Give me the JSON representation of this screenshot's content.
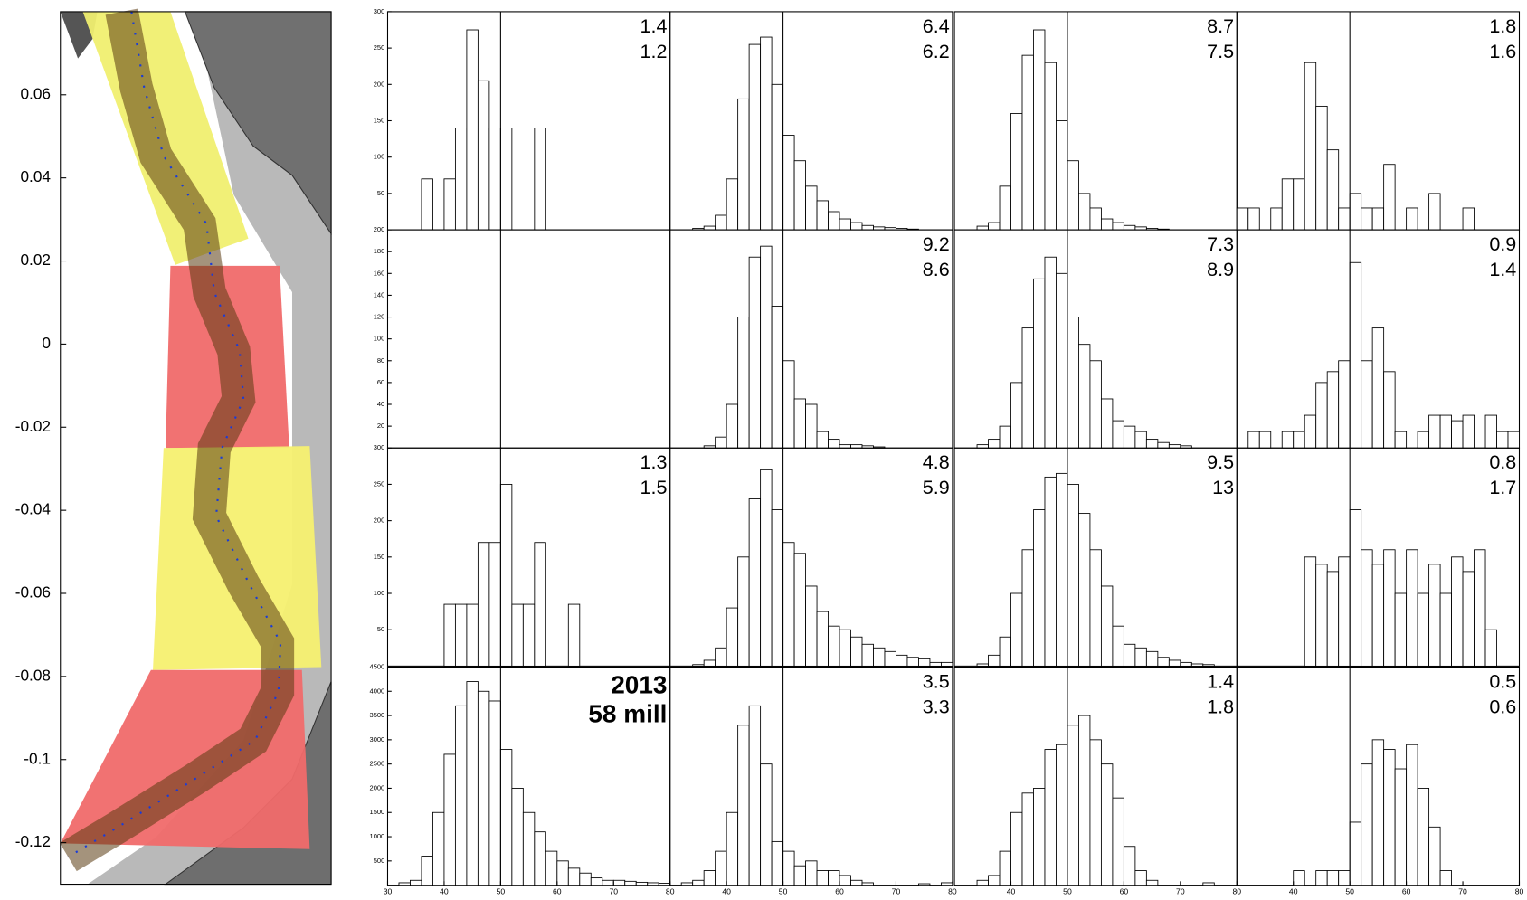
{
  "chart_data": [
    {
      "type": "map",
      "ylim": [
        -0.13,
        0.08
      ],
      "yticks": [
        0.06,
        0.04,
        0.02,
        0,
        -0.02,
        -0.04,
        -0.06,
        -0.08,
        -0.1,
        -0.12
      ]
    },
    {
      "type": "histogram-grid",
      "bins": [
        30,
        32,
        34,
        36,
        38,
        40,
        42,
        44,
        46,
        48,
        50,
        52,
        54,
        56,
        58,
        60,
        62,
        64,
        66,
        68,
        70,
        72,
        74,
        76,
        78,
        80
      ],
      "xlim": [
        30,
        80
      ],
      "xticks": [
        30,
        40,
        50,
        60,
        70,
        80
      ],
      "reference_x": 50,
      "panels": [
        {
          "ylim": [
            0,
            300
          ],
          "yticks": [
            50,
            100,
            150,
            200,
            250,
            300
          ],
          "annotations": [
            "1.4",
            "1.2"
          ],
          "values": [
            0,
            0,
            0,
            70,
            0,
            70,
            140,
            275,
            205,
            140,
            140,
            0,
            0,
            140,
            0,
            0,
            0,
            0,
            0,
            0,
            0,
            0,
            0,
            0,
            0
          ]
        },
        {
          "ylim": [
            0,
            300
          ],
          "annotations": [
            "6.4",
            "6.2"
          ],
          "values": [
            0,
            0,
            2,
            5,
            20,
            70,
            180,
            255,
            265,
            200,
            130,
            95,
            60,
            40,
            25,
            15,
            10,
            6,
            4,
            3,
            2,
            1,
            0,
            0,
            0
          ]
        },
        {
          "ylim": [
            0,
            300
          ],
          "annotations": [
            "8.7",
            "7.5"
          ],
          "values": [
            0,
            0,
            5,
            10,
            60,
            160,
            240,
            275,
            230,
            150,
            95,
            50,
            30,
            15,
            10,
            6,
            4,
            2,
            1,
            0,
            0,
            0,
            0,
            0,
            0
          ]
        },
        {
          "ylim": [
            0,
            300
          ],
          "annotations": [
            "1.8",
            "1.6"
          ],
          "values": [
            30,
            30,
            0,
            30,
            70,
            70,
            230,
            170,
            110,
            30,
            50,
            30,
            30,
            90,
            0,
            30,
            0,
            50,
            0,
            0,
            30,
            0,
            0,
            0,
            0
          ]
        },
        {
          "ylim": [
            0,
            200
          ],
          "yticks": [
            20,
            40,
            60,
            80,
            100,
            120,
            140,
            160,
            180,
            200
          ],
          "annotations": [],
          "values": [
            0,
            0,
            0,
            0,
            0,
            0,
            0,
            0,
            0,
            0,
            0,
            0,
            0,
            0,
            0,
            0,
            0,
            0,
            0,
            0,
            0,
            0,
            0,
            0,
            0
          ]
        },
        {
          "ylim": [
            0,
            200
          ],
          "annotations": [
            "9.2",
            "8.6"
          ],
          "values": [
            0,
            0,
            0,
            2,
            10,
            40,
            120,
            175,
            185,
            130,
            80,
            45,
            40,
            15,
            8,
            3,
            3,
            2,
            1,
            0,
            0,
            0,
            0,
            0,
            0
          ]
        },
        {
          "ylim": [
            0,
            200
          ],
          "annotations": [
            "7.3",
            "8.9"
          ],
          "values": [
            0,
            0,
            3,
            8,
            20,
            60,
            110,
            155,
            175,
            160,
            120,
            95,
            80,
            45,
            25,
            20,
            15,
            8,
            5,
            3,
            2,
            0,
            0,
            0,
            0
          ]
        },
        {
          "ylim": [
            0,
            200
          ],
          "annotations": [
            "0.9",
            "1.4"
          ],
          "values": [
            0,
            15,
            15,
            0,
            15,
            15,
            30,
            60,
            70,
            80,
            170,
            80,
            110,
            70,
            15,
            0,
            15,
            30,
            30,
            25,
            30,
            0,
            30,
            15,
            15
          ]
        },
        {
          "ylim": [
            0,
            300
          ],
          "yticks": [
            50,
            100,
            150,
            200,
            250,
            300
          ],
          "annotations": [
            "1.3",
            "1.5"
          ],
          "values": [
            0,
            0,
            0,
            0,
            0,
            85,
            85,
            85,
            170,
            170,
            250,
            85,
            85,
            170,
            0,
            0,
            85,
            0,
            0,
            0,
            0,
            0,
            0,
            0,
            0
          ]
        },
        {
          "ylim": [
            0,
            300
          ],
          "annotations": [
            "4.8",
            "5.9"
          ],
          "values": [
            0,
            0,
            2,
            8,
            25,
            80,
            150,
            230,
            270,
            215,
            170,
            155,
            110,
            75,
            55,
            50,
            40,
            30,
            25,
            20,
            15,
            12,
            10,
            5,
            5
          ]
        },
        {
          "ylim": [
            0,
            300
          ],
          "annotations": [
            "9.5",
            "13"
          ],
          "values": [
            0,
            0,
            3,
            15,
            40,
            100,
            160,
            215,
            260,
            265,
            250,
            210,
            160,
            110,
            55,
            30,
            25,
            20,
            12,
            8,
            5,
            3,
            2,
            0,
            0
          ]
        },
        {
          "ylim": [
            0,
            300
          ],
          "annotations": [
            "0.8",
            "1.7"
          ],
          "values": [
            0,
            0,
            0,
            0,
            0,
            0,
            150,
            140,
            130,
            150,
            215,
            160,
            140,
            160,
            100,
            160,
            100,
            140,
            100,
            150,
            130,
            160,
            50,
            0,
            0
          ]
        },
        {
          "ylim": [
            0,
            4500
          ],
          "yticks": [
            500,
            1000,
            1500,
            2000,
            2500,
            3000,
            3500,
            4000,
            4500
          ],
          "annotations": [
            "2013",
            "58 mill"
          ],
          "values": [
            0,
            50,
            100,
            600,
            1500,
            2700,
            3700,
            4200,
            4000,
            3800,
            2800,
            2000,
            1500,
            1100,
            700,
            500,
            350,
            250,
            150,
            100,
            100,
            80,
            60,
            50,
            40
          ]
        },
        {
          "ylim": [
            0,
            4500
          ],
          "annotations": [
            "3.5",
            "3.3"
          ],
          "values": [
            0,
            50,
            100,
            300,
            700,
            1500,
            3300,
            3700,
            2500,
            900,
            700,
            400,
            500,
            300,
            300,
            200,
            100,
            50,
            0,
            0,
            0,
            0,
            30,
            0,
            50
          ]
        },
        {
          "ylim": [
            0,
            4500
          ],
          "annotations": [
            "1.4",
            "1.8"
          ],
          "values": [
            0,
            0,
            100,
            200,
            700,
            1500,
            1900,
            2000,
            2800,
            2900,
            3300,
            3500,
            3000,
            2500,
            1800,
            800,
            300,
            100,
            0,
            0,
            0,
            0,
            50,
            0,
            0
          ]
        },
        {
          "ylim": [
            0,
            4500
          ],
          "annotations": [
            "0.5",
            "0.6"
          ],
          "values": [
            0,
            0,
            0,
            0,
            0,
            300,
            0,
            300,
            300,
            300,
            1300,
            2500,
            3000,
            2800,
            2400,
            2900,
            2000,
            1200,
            300,
            0,
            0,
            0,
            0,
            0,
            0
          ]
        }
      ]
    }
  ]
}
